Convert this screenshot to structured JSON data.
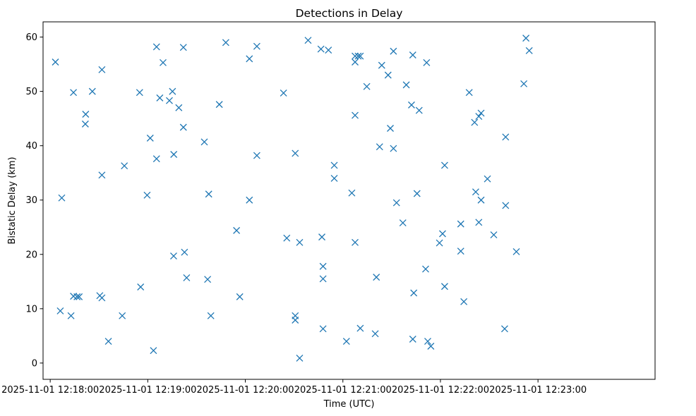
{
  "chart_data": {
    "type": "scatter",
    "title": "Detections in Delay",
    "xlabel": "Time (UTC)",
    "ylabel": "Bistatic Delay (km)",
    "grid": false,
    "marker": "x",
    "color": "#1f77b4",
    "x_unit": "seconds after 2025-11-01 12:18:00",
    "xlim": [
      -4.4,
      372
    ],
    "ylim": [
      -3,
      62.8
    ],
    "x_ticks": [
      {
        "value": 0,
        "label": "2025-11-01 12:18:00"
      },
      {
        "value": 60,
        "label": "2025-11-01 12:19:00"
      },
      {
        "value": 120,
        "label": "2025-11-01 12:20:00"
      },
      {
        "value": 180,
        "label": "2025-11-01 12:21:00"
      },
      {
        "value": 240,
        "label": "2025-11-01 12:22:00"
      },
      {
        "value": 300,
        "label": "2025-11-01 12:23:00"
      }
    ],
    "y_ticks": [
      {
        "value": 0,
        "label": "0"
      },
      {
        "value": 10,
        "label": "10"
      },
      {
        "value": 20,
        "label": "20"
      },
      {
        "value": 30,
        "label": "30"
      },
      {
        "value": 40,
        "label": "40"
      },
      {
        "value": 50,
        "label": "50"
      },
      {
        "value": 60,
        "label": "60"
      }
    ],
    "points": [
      [
        3.2,
        55.4
      ],
      [
        6.2,
        9.6
      ],
      [
        7.1,
        30.4
      ],
      [
        12.8,
        8.7
      ],
      [
        14.3,
        49.8
      ],
      [
        14.3,
        12.3
      ],
      [
        16.5,
        12.2
      ],
      [
        17.8,
        12.2
      ],
      [
        21.8,
        45.8
      ],
      [
        21.6,
        44.0
      ],
      [
        25.9,
        50.0
      ],
      [
        30.5,
        12.4
      ],
      [
        31.8,
        54.0
      ],
      [
        31.8,
        34.6
      ],
      [
        31.8,
        12.0
      ],
      [
        35.8,
        4.0
      ],
      [
        44.3,
        8.7
      ],
      [
        45.6,
        36.3
      ],
      [
        55.0,
        49.8
      ],
      [
        55.6,
        14.0
      ],
      [
        59.6,
        30.9
      ],
      [
        61.5,
        41.4
      ],
      [
        63.5,
        2.3
      ],
      [
        65.4,
        58.2
      ],
      [
        65.4,
        37.6
      ],
      [
        67.4,
        48.8
      ],
      [
        69.4,
        55.3
      ],
      [
        73.3,
        48.3
      ],
      [
        75.2,
        50.0
      ],
      [
        76.0,
        38.4
      ],
      [
        75.9,
        19.7
      ],
      [
        79.1,
        47.0
      ],
      [
        81.9,
        58.1
      ],
      [
        81.9,
        43.4
      ],
      [
        82.6,
        20.4
      ],
      [
        83.9,
        15.7
      ],
      [
        94.8,
        40.7
      ],
      [
        96.8,
        15.4
      ],
      [
        97.5,
        31.1
      ],
      [
        98.8,
        8.7
      ],
      [
        104.0,
        47.6
      ],
      [
        108.0,
        59.0
      ],
      [
        114.6,
        24.4
      ],
      [
        116.6,
        12.2
      ],
      [
        122.5,
        56.0
      ],
      [
        122.5,
        30.0
      ],
      [
        127.1,
        38.2
      ],
      [
        127.1,
        58.3
      ],
      [
        143.5,
        49.7
      ],
      [
        145.5,
        23.0
      ],
      [
        150.7,
        38.6
      ],
      [
        150.7,
        8.7
      ],
      [
        150.7,
        7.9
      ],
      [
        153.4,
        22.2
      ],
      [
        153.4,
        0.9
      ],
      [
        158.6,
        59.4
      ],
      [
        166.5,
        57.8
      ],
      [
        167.1,
        23.2
      ],
      [
        167.8,
        17.8
      ],
      [
        167.8,
        15.5
      ],
      [
        167.8,
        6.3
      ],
      [
        171.1,
        57.6
      ],
      [
        174.7,
        36.4
      ],
      [
        174.7,
        34.0
      ],
      [
        182.2,
        4.0
      ],
      [
        185.5,
        31.3
      ],
      [
        187.5,
        56.5
      ],
      [
        187.5,
        55.4
      ],
      [
        187.5,
        45.6
      ],
      [
        187.5,
        22.2
      ],
      [
        189.4,
        56.5
      ],
      [
        190.7,
        6.4
      ],
      [
        190.7,
        56.5
      ],
      [
        194.7,
        50.9
      ],
      [
        199.9,
        5.4
      ],
      [
        200.6,
        15.8
      ],
      [
        202.6,
        39.8
      ],
      [
        203.9,
        54.8
      ],
      [
        207.8,
        53.0
      ],
      [
        209.2,
        43.2
      ],
      [
        211.1,
        57.4
      ],
      [
        211.1,
        39.5
      ],
      [
        213.0,
        29.5
      ],
      [
        216.9,
        25.8
      ],
      [
        219.0,
        51.2
      ],
      [
        222.2,
        47.5
      ],
      [
        223.0,
        56.7
      ],
      [
        223.6,
        12.9
      ],
      [
        223.0,
        4.4
      ],
      [
        225.6,
        31.2
      ],
      [
        226.9,
        46.5
      ],
      [
        230.9,
        17.3
      ],
      [
        231.5,
        55.3
      ],
      [
        232.2,
        4.0
      ],
      [
        234.1,
        3.1
      ],
      [
        239.4,
        22.1
      ],
      [
        241.3,
        23.8
      ],
      [
        242.6,
        36.4
      ],
      [
        242.6,
        14.1
      ],
      [
        252.5,
        25.6
      ],
      [
        252.5,
        20.6
      ],
      [
        254.4,
        11.3
      ],
      [
        257.7,
        49.8
      ],
      [
        261.0,
        44.3
      ],
      [
        261.7,
        31.5
      ],
      [
        263.6,
        45.4
      ],
      [
        263.6,
        25.9
      ],
      [
        265.0,
        30.0
      ],
      [
        265.0,
        46.0
      ],
      [
        268.9,
        33.9
      ],
      [
        272.8,
        23.6
      ],
      [
        279.5,
        6.3
      ],
      [
        280.1,
        41.6
      ],
      [
        280.1,
        29.0
      ],
      [
        286.7,
        20.5
      ],
      [
        291.3,
        51.4
      ],
      [
        292.6,
        59.8
      ],
      [
        294.6,
        57.5
      ]
    ]
  }
}
